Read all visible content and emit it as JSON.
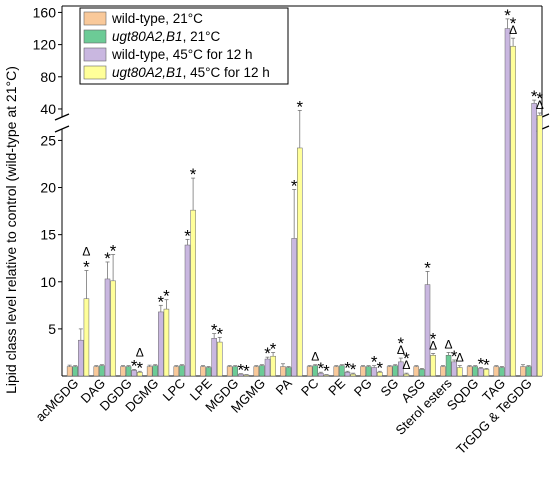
{
  "chart_data": {
    "type": "bar",
    "ylabel": "Lipid class level relative to control (wild-type at 21°C)",
    "categories": [
      "acMGDG",
      "DAG",
      "DGDG",
      "DGMG",
      "LPC",
      "LPE",
      "MGDG",
      "MGMG",
      "PA",
      "PC",
      "PE",
      "PG",
      "SG",
      "ASG",
      "Sterol esters",
      "SQDG",
      "TAG",
      "TrGDG & TeGDG"
    ],
    "series": [
      {
        "name": "wild-type, 21°C",
        "color": "#F9C99A",
        "values": [
          1,
          1,
          1,
          1,
          1,
          1,
          1,
          1,
          1,
          1,
          1,
          1,
          1,
          1,
          1,
          1,
          1,
          1
        ],
        "errors": [
          0.15,
          0.1,
          0.1,
          0.15,
          0.1,
          0.1,
          0.1,
          0.1,
          0.3,
          0.1,
          0.1,
          0.1,
          0.1,
          0.1,
          0.1,
          0.1,
          0.1,
          0.2
        ]
      },
      {
        "name": "ugt80A2,B1, 21°C",
        "color": "#6CCB96",
        "values": [
          1.0,
          1.1,
          1.0,
          1.1,
          1.1,
          0.9,
          1.0,
          1.1,
          0.9,
          1.1,
          1.1,
          1.0,
          1.1,
          0.7,
          2.2,
          1.0,
          0.9,
          1.0
        ],
        "errors": [
          0.1,
          0.1,
          0.1,
          0.1,
          0.1,
          0.1,
          0.1,
          0.1,
          0.1,
          0.1,
          0.1,
          0.1,
          0.1,
          0.1,
          0.3,
          0.1,
          0.1,
          0.1
        ]
      },
      {
        "name": "wild-type, 45°C for 12 h",
        "color": "#C9B7E0",
        "values": [
          3.8,
          10.3,
          0.6,
          6.8,
          13.9,
          4.0,
          0.2,
          1.8,
          14.6,
          0.3,
          0.4,
          0.9,
          1.5,
          9.7,
          1.5,
          0.8,
          140,
          47
        ],
        "errors": [
          1.2,
          1.8,
          0.1,
          0.7,
          0.6,
          0.5,
          0.05,
          0.2,
          5.2,
          0.1,
          0.1,
          0.2,
          0.4,
          1.4,
          0.2,
          0.1,
          12,
          4
        ]
      },
      {
        "name": "ugt80A2,B1, 45°C for 12 h",
        "color": "#FFFF99",
        "values": [
          8.2,
          10.1,
          0.4,
          7.1,
          17.6,
          3.6,
          0.1,
          2.1,
          24.2,
          0.1,
          0.2,
          0.4,
          0.2,
          2.2,
          0.9,
          0.7,
          118,
          32
        ],
        "errors": [
          3.0,
          2.8,
          0.1,
          1.0,
          3.4,
          0.5,
          0.05,
          0.4,
          14.0,
          0.05,
          0.1,
          0.1,
          0.1,
          0.2,
          0.2,
          0.1,
          10,
          3
        ]
      }
    ],
    "annotations": [
      {
        "category": "acMGDG",
        "series": 3,
        "text": "*"
      },
      {
        "category": "acMGDG",
        "series": 3,
        "text": "Δ"
      },
      {
        "category": "DAG",
        "series": 2,
        "text": "*"
      },
      {
        "category": "DAG",
        "series": 3,
        "text": "*"
      },
      {
        "category": "DGDG",
        "series": 2,
        "text": "*"
      },
      {
        "category": "DGDG",
        "series": 3,
        "text": "*"
      },
      {
        "category": "DGDG",
        "series": 3,
        "text": "Δ"
      },
      {
        "category": "DGMG",
        "series": 2,
        "text": "*"
      },
      {
        "category": "DGMG",
        "series": 3,
        "text": "*"
      },
      {
        "category": "LPC",
        "series": 2,
        "text": "*"
      },
      {
        "category": "LPC",
        "series": 3,
        "text": "*"
      },
      {
        "category": "LPE",
        "series": 2,
        "text": "*"
      },
      {
        "category": "LPE",
        "series": 3,
        "text": "*"
      },
      {
        "category": "MGDG",
        "series": 2,
        "text": "*"
      },
      {
        "category": "MGDG",
        "series": 3,
        "text": "*"
      },
      {
        "category": "MGMG",
        "series": 2,
        "text": "*"
      },
      {
        "category": "MGMG",
        "series": 3,
        "text": "*"
      },
      {
        "category": "PA",
        "series": 2,
        "text": "*"
      },
      {
        "category": "PA",
        "series": 3,
        "text": "*"
      },
      {
        "category": "PC",
        "series": 1,
        "text": "Δ"
      },
      {
        "category": "PC",
        "series": 2,
        "text": "*"
      },
      {
        "category": "PC",
        "series": 3,
        "text": "*"
      },
      {
        "category": "PE",
        "series": 2,
        "text": "*"
      },
      {
        "category": "PE",
        "series": 3,
        "text": "*"
      },
      {
        "category": "PG",
        "series": 2,
        "text": "*"
      },
      {
        "category": "PG",
        "series": 3,
        "text": "*"
      },
      {
        "category": "SG",
        "series": 2,
        "text": "Δ"
      },
      {
        "category": "SG",
        "series": 2,
        "text": "*"
      },
      {
        "category": "SG",
        "series": 3,
        "text": "Δ"
      },
      {
        "category": "SG",
        "series": 3,
        "text": "*"
      },
      {
        "category": "ASG",
        "series": 2,
        "text": "*"
      },
      {
        "category": "ASG",
        "series": 3,
        "text": "Δ"
      },
      {
        "category": "ASG",
        "series": 3,
        "text": "*"
      },
      {
        "category": "Sterol esters",
        "series": 1,
        "text": "Δ"
      },
      {
        "category": "Sterol esters",
        "series": 2,
        "text": "*"
      },
      {
        "category": "Sterol esters",
        "series": 3,
        "text": "Δ"
      },
      {
        "category": "SQDG",
        "series": 2,
        "text": "*"
      },
      {
        "category": "SQDG",
        "series": 3,
        "text": "*"
      },
      {
        "category": "TAG",
        "series": 2,
        "text": "*"
      },
      {
        "category": "TAG",
        "series": 3,
        "text": "Δ"
      },
      {
        "category": "TAG",
        "series": 3,
        "text": "*"
      },
      {
        "category": "TrGDG & TeGDG",
        "series": 2,
        "text": "*"
      },
      {
        "category": "TrGDG & TeGDG",
        "series": 3,
        "text": "Δ"
      },
      {
        "category": "TrGDG & TeGDG",
        "series": 3,
        "text": "*"
      }
    ],
    "y_axis": {
      "broken": true,
      "lower_range": [
        0,
        26
      ],
      "upper_range": [
        30,
        168
      ],
      "lower_ticks": [
        5,
        10,
        15,
        20,
        25
      ],
      "upper_ticks": [
        40,
        80,
        120,
        160
      ]
    },
    "legend_position": "top-left",
    "grid": false
  }
}
